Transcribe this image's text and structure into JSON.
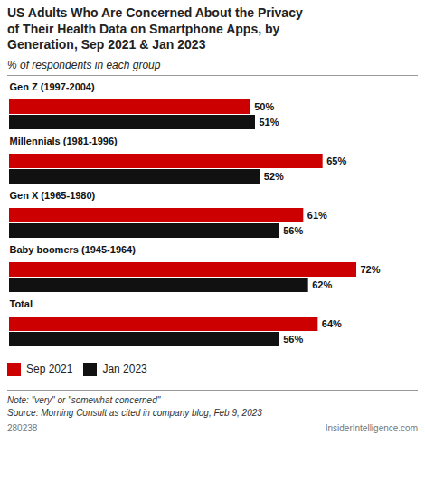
{
  "chart_data": {
    "type": "bar",
    "orientation": "horizontal",
    "title": "US Adults Who Are Concerned About the Privacy\nof Their Health Data on Smartphone Apps, by\nGeneration, Sep 2021 & Jan 2023",
    "subtitle": "% of respondents in each group",
    "categories": [
      "Gen Z (1997-2004)",
      "Millennials (1981-1996)",
      "Gen X (1965-1980)",
      "Baby boomers (1945-1964)",
      "Total"
    ],
    "series": [
      {
        "name": "Sep 2021",
        "color": "#cc0000",
        "values": [
          50,
          65,
          61,
          72,
          64
        ],
        "value_labels": [
          "50%",
          "65%",
          "61%",
          "72%",
          "64%"
        ]
      },
      {
        "name": "Jan 2023",
        "color": "#111111",
        "values": [
          51,
          52,
          56,
          62,
          56
        ],
        "value_labels": [
          "51%",
          "52%",
          "56%",
          "62%",
          "56%"
        ]
      }
    ],
    "xlim": [
      0,
      78
    ],
    "data_labels": true,
    "tick_labels": false,
    "legend": "bottom",
    "annotations": [
      "Note: \"very\" or \"somewhat concerned\"",
      "Source: Morning Consult as cited in company blog, Feb 9, 2023",
      "280238",
      "InsiderIntelligence.com"
    ]
  }
}
